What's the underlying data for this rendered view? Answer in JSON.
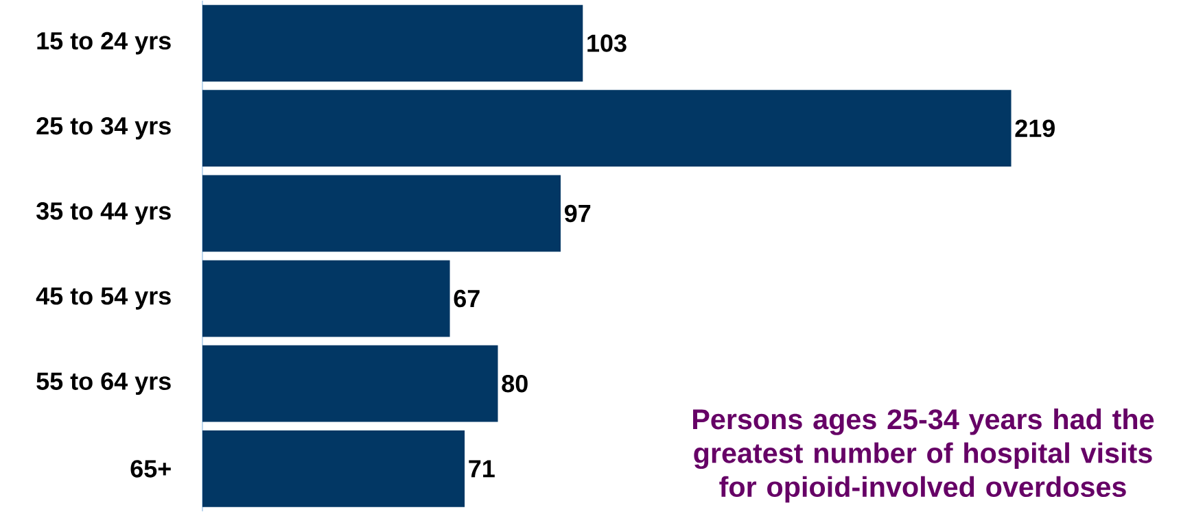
{
  "chart_data": {
    "type": "bar",
    "orientation": "horizontal",
    "categories": [
      "15 to 24 yrs",
      "25 to 34 yrs",
      "35 to 44 yrs",
      "45 to 54 yrs",
      "55 to 64 yrs",
      "65+"
    ],
    "values": [
      103,
      219,
      97,
      67,
      80,
      71
    ],
    "color": "#023764",
    "data_labels": true,
    "annotations": [
      "Persons ages 25-34 years had the greatest number of hospital visits for opioid-involved overdoses"
    ]
  }
}
